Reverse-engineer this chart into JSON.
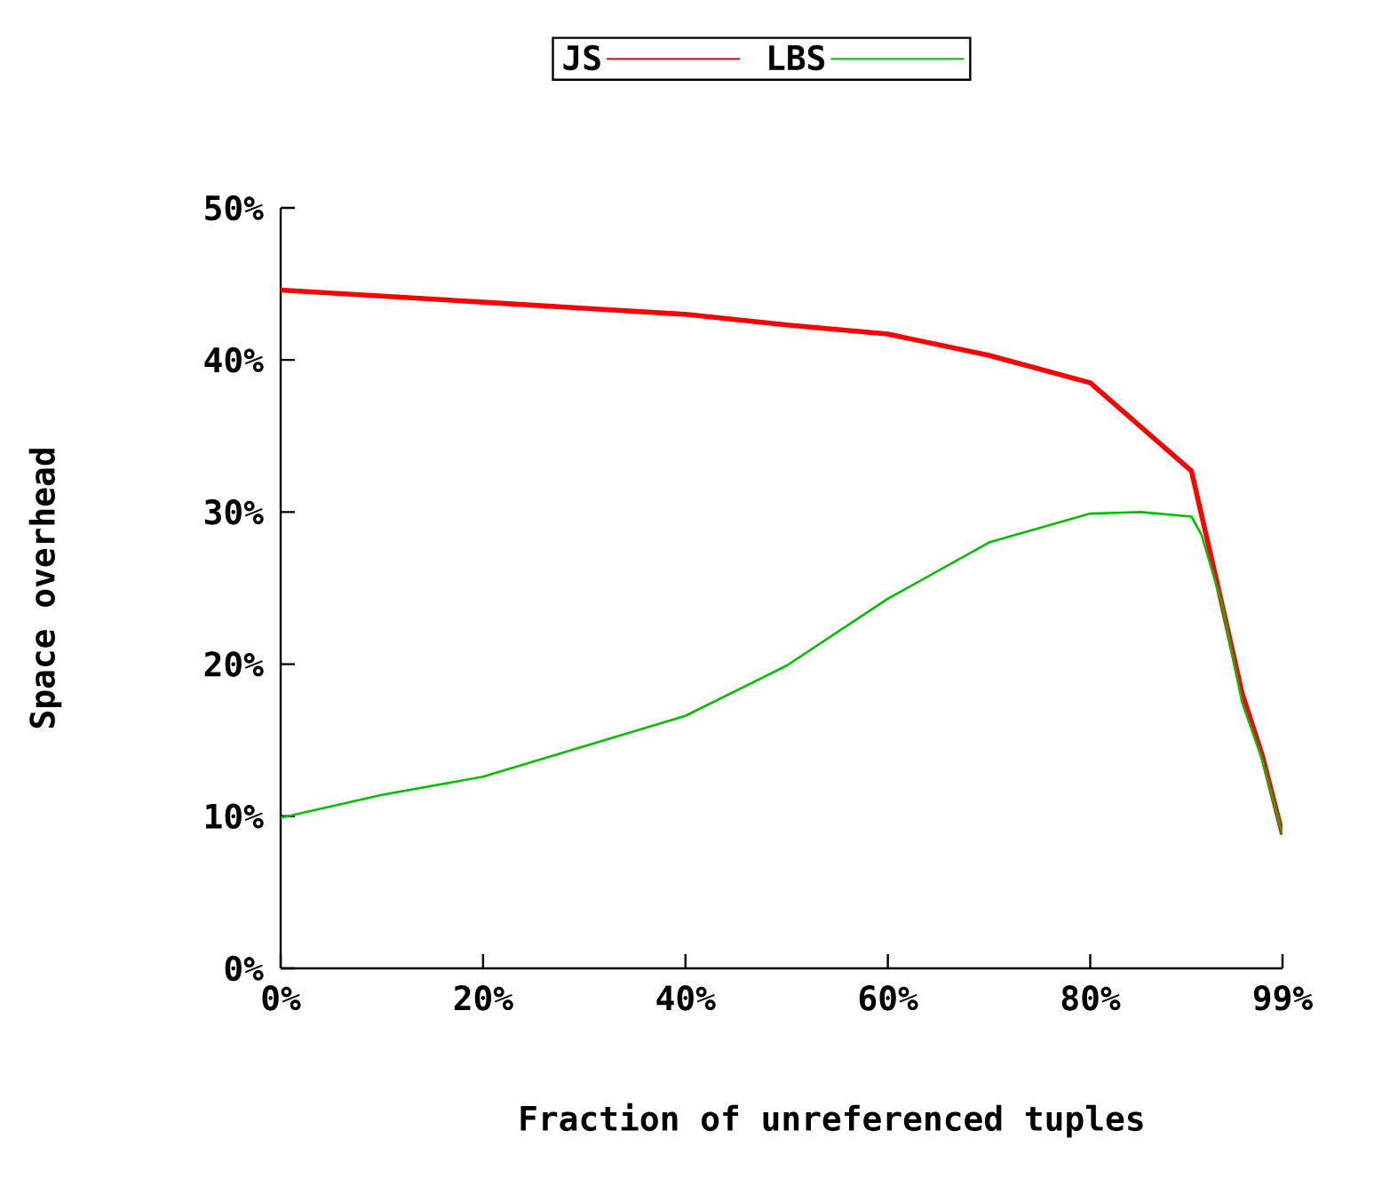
{
  "chart_data": {
    "type": "line",
    "xlabel": "Fraction of unreferenced tuples",
    "ylabel": "Space overhead",
    "x": [
      0,
      10,
      20,
      30,
      40,
      50,
      60,
      70,
      80,
      85,
      90,
      91,
      93,
      95,
      97,
      99
    ],
    "series": [
      {
        "name": "JS",
        "color": "#ff0000",
        "values": [
          44.6,
          44.2,
          43.8,
          43.4,
          43,
          42.3,
          41.7,
          40.3,
          38.5,
          35.6,
          32.7,
          29.8,
          24,
          18.1,
          14,
          8.8
        ]
      },
      {
        "name": "LBS",
        "color": "#00c000",
        "values": [
          9.9,
          11.4,
          12.6,
          14.6,
          16.6,
          19.9,
          24.3,
          28,
          29.9,
          30,
          29.7,
          28.5,
          24,
          17.5,
          13.7,
          8.8
        ]
      }
    ],
    "xlim": [
      0,
      99
    ],
    "ylim": [
      0,
      50
    ],
    "xticks": [
      {
        "value": 0,
        "label": "0%"
      },
      {
        "value": 20,
        "label": "20%"
      },
      {
        "value": 40,
        "label": "40%"
      },
      {
        "value": 60,
        "label": "60%"
      },
      {
        "value": 80,
        "label": "80%"
      },
      {
        "value": 99,
        "label": "99%"
      }
    ],
    "yticks": [
      {
        "value": 0,
        "label": "0%"
      },
      {
        "value": 10,
        "label": "10%"
      },
      {
        "value": 20,
        "label": "20%"
      },
      {
        "value": 30,
        "label": "30%"
      },
      {
        "value": 40,
        "label": "40%"
      },
      {
        "value": 50,
        "label": "50%"
      }
    ],
    "legend": "top",
    "grid": false,
    "marker": "none",
    "line_style": "solid"
  }
}
